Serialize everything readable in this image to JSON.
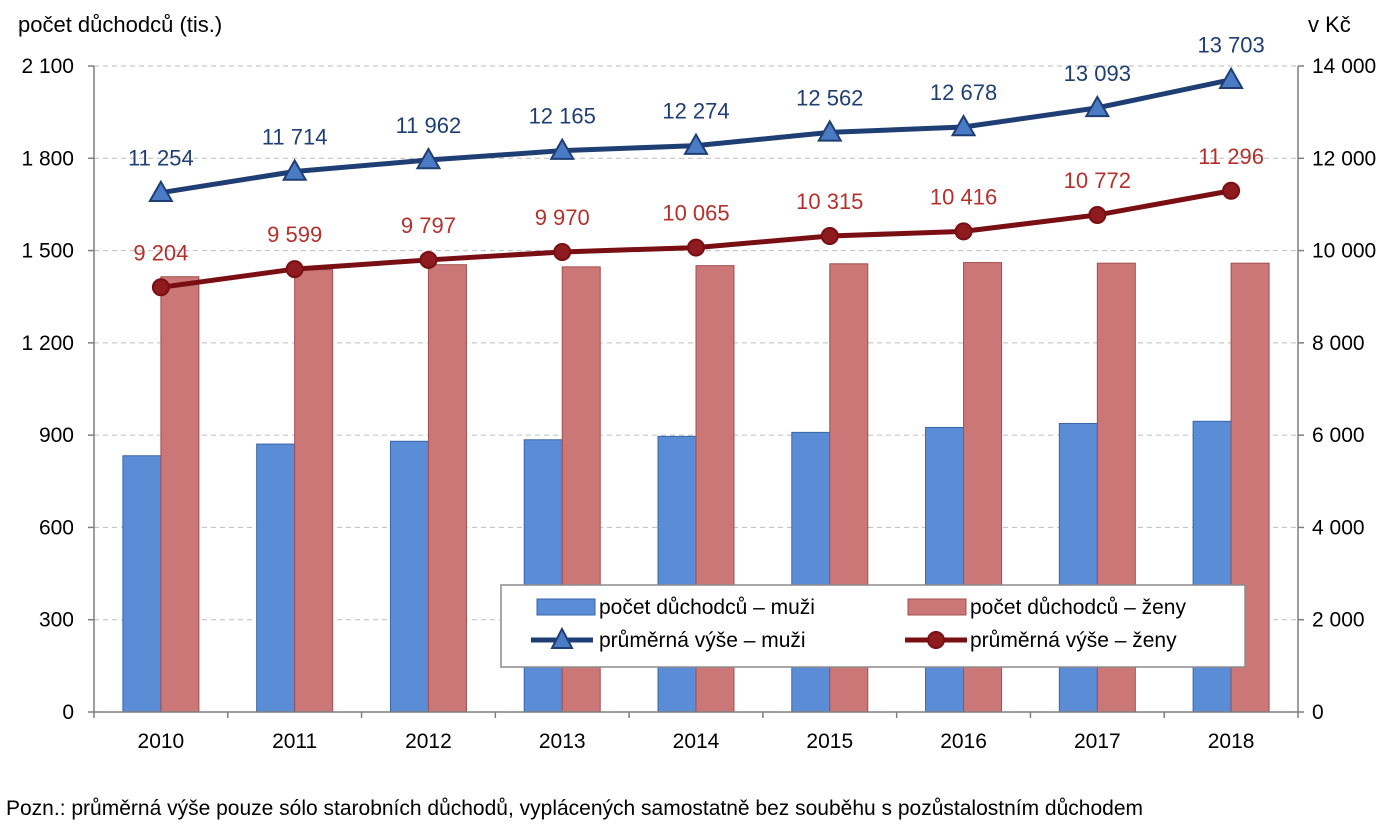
{
  "chart_data": {
    "type": "bar",
    "left_axis_title": "počet důchodců (tis.)",
    "right_axis_title": "v Kč",
    "categories": [
      "2010",
      "2011",
      "2012",
      "2013",
      "2014",
      "2015",
      "2016",
      "2017",
      "2018"
    ],
    "left_axis": {
      "ylim": [
        0,
        2100
      ],
      "ticks": [
        0,
        300,
        600,
        900,
        1200,
        1500,
        1800,
        2100
      ],
      "tick_labels": [
        "0",
        "300",
        "600",
        "900",
        "1 200",
        "1 500",
        "1 800",
        "2 100"
      ]
    },
    "right_axis": {
      "ylim": [
        0,
        14000
      ],
      "ticks": [
        0,
        2000,
        4000,
        6000,
        8000,
        10000,
        12000,
        14000
      ],
      "tick_labels": [
        "0",
        "2 000",
        "4 000",
        "6 000",
        "8 000",
        "10 000",
        "12 000",
        "14 000"
      ]
    },
    "grid": true,
    "legend_position": "bottom-right",
    "series": [
      {
        "name": "počet důchodců – muži",
        "type": "bar",
        "axis": "left",
        "color": "#5B8DD6",
        "stroke": "#3A65A8",
        "values": [
          833,
          871,
          880,
          885,
          896,
          909,
          925,
          938,
          945
        ]
      },
      {
        "name": "počet důchodců – ženy",
        "type": "bar",
        "axis": "left",
        "color": "#CC7777",
        "stroke": "#A04F4F",
        "values": [
          1415,
          1438,
          1454,
          1447,
          1451,
          1457,
          1461,
          1459,
          1459
        ]
      },
      {
        "name": "průměrná výše – muži",
        "type": "line",
        "marker": "triangle",
        "axis": "right",
        "color": "#1F3F74",
        "label_color": "#1F3F74",
        "values": [
          11254,
          11714,
          11962,
          12165,
          12274,
          12562,
          12678,
          13093,
          13703
        ],
        "labels": [
          "11 254",
          "11 714",
          "11 962",
          "12 165",
          "12 274",
          "12 562",
          "12 678",
          "13 093",
          "13 703"
        ]
      },
      {
        "name": "průměrná výše – ženy",
        "type": "line",
        "marker": "circle",
        "axis": "right",
        "color": "#7A0F13",
        "label_color": "#B5302C",
        "values": [
          9204,
          9599,
          9797,
          9970,
          10065,
          10315,
          10416,
          10772,
          11296
        ],
        "labels": [
          "9 204",
          "9 599",
          "9 797",
          "9 970",
          "10 065",
          "10 315",
          "10 416",
          "10 772",
          "11 296"
        ]
      }
    ]
  },
  "note": "Pozn.: průměrná výše pouze sólo starobních důchodů, vyplácených samostatně bez souběhu s pozůstalostním důchodem"
}
